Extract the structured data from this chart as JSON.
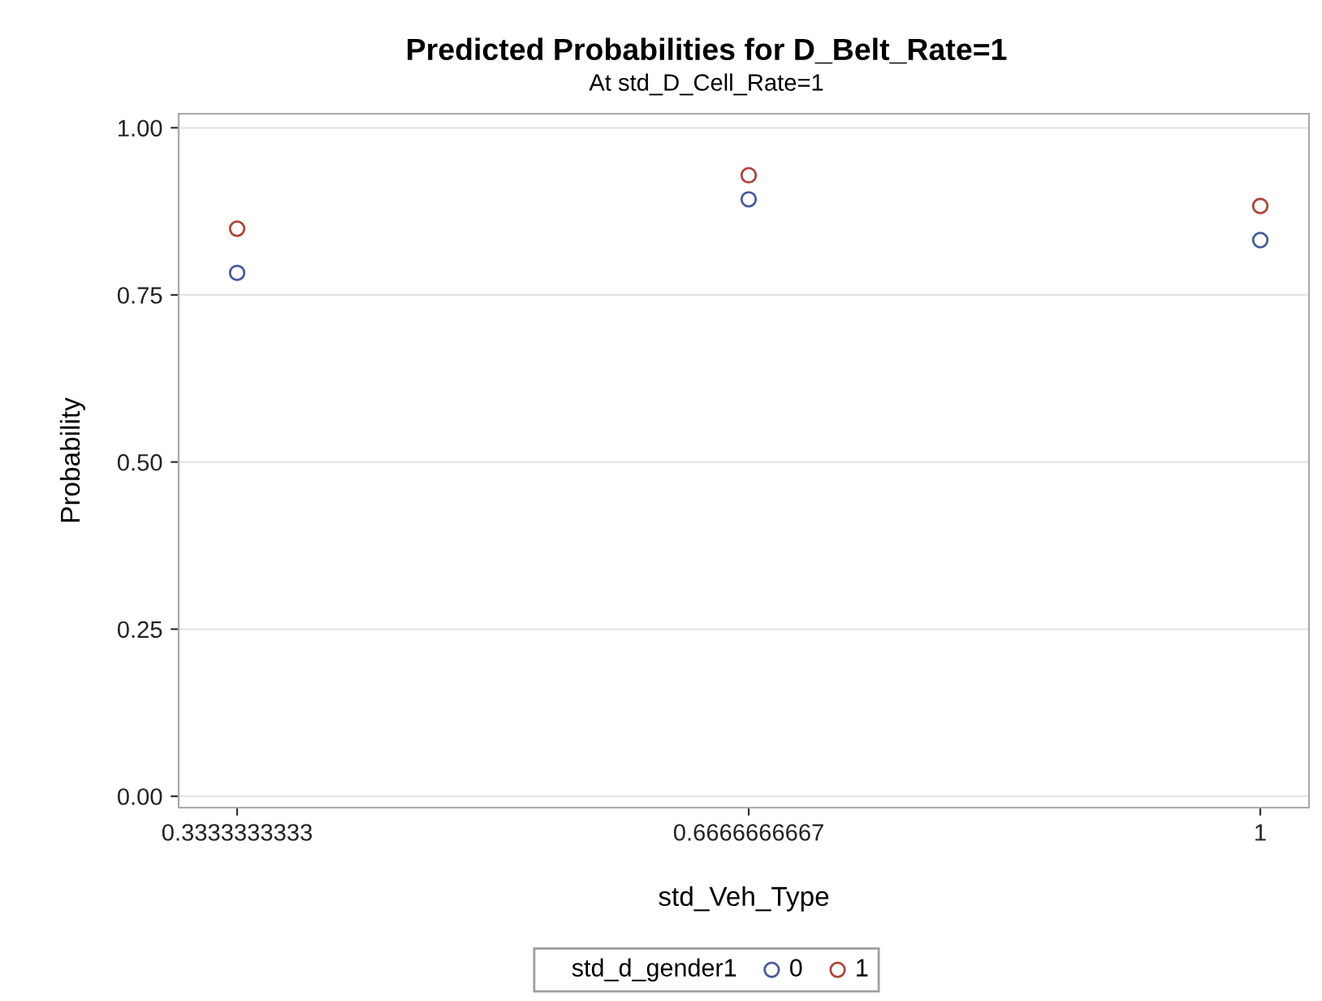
{
  "chart_data": {
    "type": "scatter",
    "title": "Predicted Probabilities for D_Belt_Rate=1",
    "subtitle": "At std_D_Cell_Rate=1",
    "xlabel": "std_Veh_Type",
    "ylabel": "Probability",
    "categories": [
      "0.3333333333",
      "0.6666666667",
      "1"
    ],
    "series": [
      {
        "name": "0",
        "color": "#4a5a9c",
        "values": [
          0.783,
          0.893,
          0.832
        ]
      },
      {
        "name": "1",
        "color": "#b0443a",
        "values": [
          0.849,
          0.929,
          0.883
        ]
      }
    ],
    "legend_title": "std_d_gender1",
    "legend": "bottom",
    "marker": "circle",
    "ylim": [
      -0.017,
      1.021
    ],
    "yticks": [
      {
        "value": 0,
        "label": "0.00"
      },
      {
        "value": 0.25,
        "label": "0.25"
      },
      {
        "value": 0.5,
        "label": "0.50"
      },
      {
        "value": 0.75,
        "label": "0.75"
      },
      {
        "value": 1,
        "label": "1.00"
      }
    ],
    "grid": "y"
  }
}
